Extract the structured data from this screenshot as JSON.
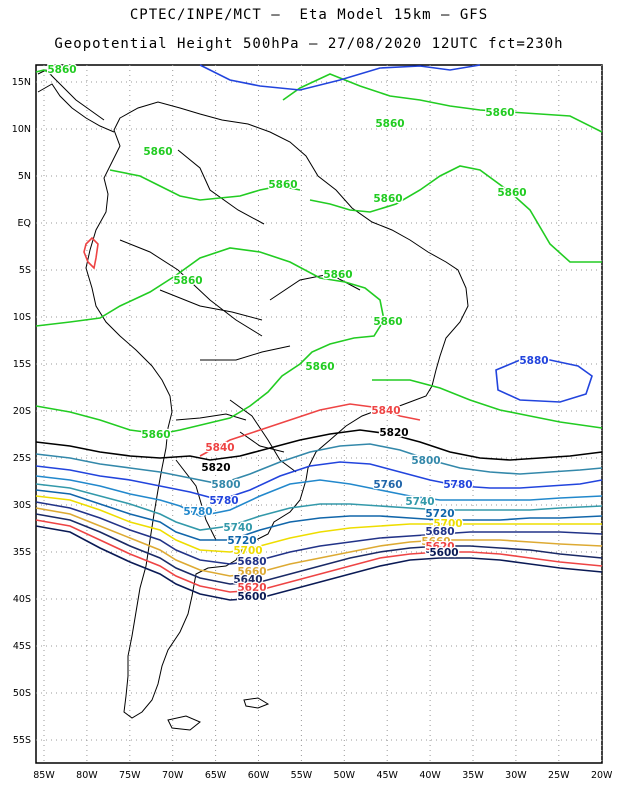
{
  "title_line1": "CPTEC/INPE/MCT –  Eta Model 15km – GFS",
  "title_line2": "Geopotential Height 500hPa – 27/08/2020 12UTC fct=230h",
  "lat_ticks": [
    "15N",
    "10N",
    "5N",
    "EQ",
    "5S",
    "10S",
    "15S",
    "20S",
    "25S",
    "30S",
    "35S",
    "40S",
    "45S",
    "50S",
    "55S"
  ],
  "lon_ticks": [
    "85W",
    "80W",
    "75W",
    "70W",
    "65W",
    "60W",
    "55W",
    "50W",
    "45W",
    "40W",
    "35W",
    "30W",
    "25W",
    "20W"
  ],
  "contour_labels": [
    {
      "text": "5860",
      "color": "#22cc22"
    },
    {
      "text": "5860",
      "color": "#22cc22"
    },
    {
      "text": "5860",
      "color": "#22cc22"
    },
    {
      "text": "5860",
      "color": "#22cc22"
    },
    {
      "text": "5860",
      "color": "#22cc22"
    },
    {
      "text": "5860",
      "color": "#22cc22"
    },
    {
      "text": "5860",
      "color": "#22cc22"
    },
    {
      "text": "5860",
      "color": "#22cc22"
    },
    {
      "text": "5860",
      "color": "#22cc22"
    },
    {
      "text": "5860",
      "color": "#22cc22"
    },
    {
      "text": "5860",
      "color": "#22cc22"
    },
    {
      "text": "5860",
      "color": "#22cc22"
    },
    {
      "text": "5880",
      "color": "#2244dd"
    },
    {
      "text": "5840",
      "color": "#ee4444"
    },
    {
      "text": "5840",
      "color": "#ee4444"
    },
    {
      "text": "5820",
      "color": "#000000"
    },
    {
      "text": "5820",
      "color": "#000000"
    },
    {
      "text": "5800",
      "color": "#3388aa"
    },
    {
      "text": "5800",
      "color": "#3388aa"
    },
    {
      "text": "5780",
      "color": "#2244dd"
    },
    {
      "text": "5780",
      "color": "#2244dd"
    },
    {
      "text": "5780",
      "color": "#2288cc"
    },
    {
      "text": "5760",
      "color": "#2266aa"
    },
    {
      "text": "5740",
      "color": "#3399aa"
    },
    {
      "text": "5740",
      "color": "#3399aa"
    },
    {
      "text": "5720",
      "color": "#1166aa"
    },
    {
      "text": "5720",
      "color": "#1166aa"
    },
    {
      "text": "5700",
      "color": "#eedd00"
    },
    {
      "text": "5700",
      "color": "#eedd00"
    },
    {
      "text": "5680",
      "color": "#223388"
    },
    {
      "text": "5680",
      "color": "#223388"
    },
    {
      "text": "5660",
      "color": "#ddaa33"
    },
    {
      "text": "5660",
      "color": "#ddaa33"
    },
    {
      "text": "5640",
      "color": "#1a2a66"
    },
    {
      "text": "5640",
      "color": "#1a2a66"
    },
    {
      "text": "5620",
      "color": "#ee4444"
    },
    {
      "text": "5620",
      "color": "#ee4444"
    },
    {
      "text": "5600",
      "color": "#0a1a55"
    },
    {
      "text": "5600",
      "color": "#0a1a55"
    }
  ]
}
